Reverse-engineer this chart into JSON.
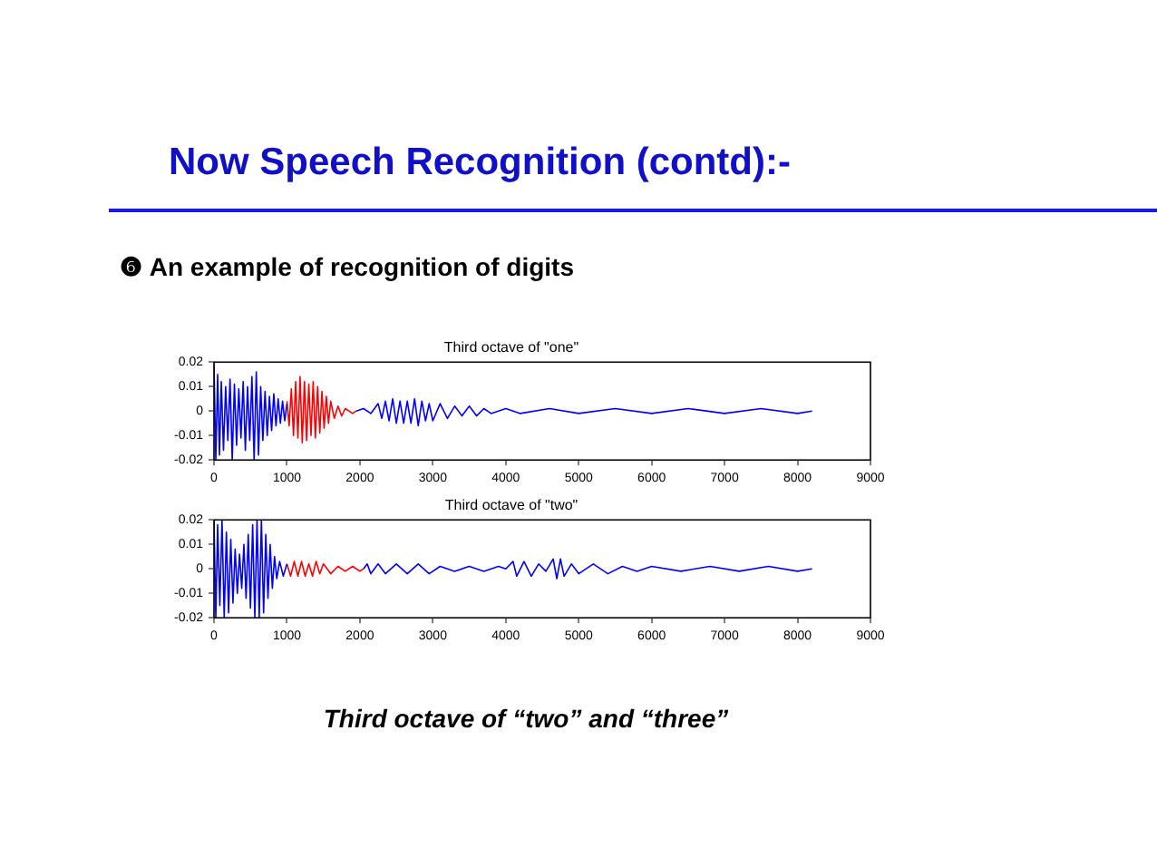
{
  "chart_data": [
    {
      "type": "line",
      "title": "Third octave of \"one\"",
      "annotations": [
        "Now Speech Recognition (contd):-",
        "❻ An example of recognition of digits"
      ],
      "xlim": [
        0,
        9000
      ],
      "xticks": [
        0,
        1000,
        2000,
        3000,
        4000,
        5000,
        6000,
        7000,
        8000,
        9000
      ],
      "ylim": [
        -0.02,
        0.02
      ],
      "yticks": [
        -0.02,
        -0.01,
        0,
        0.01,
        0.02
      ],
      "grid": false,
      "legend": false,
      "marker": "none",
      "line_style": "solid",
      "series": [
        {
          "color": "#0000ff",
          "x": [
            0,
            25,
            50,
            75,
            100,
            130,
            160,
            190,
            220,
            250,
            280,
            310,
            340,
            370,
            400,
            430,
            460,
            490,
            520,
            550,
            580,
            610,
            640,
            670,
            700,
            730,
            760,
            790,
            820,
            850,
            880,
            910,
            940,
            970,
            1000
          ],
          "values": [
            0.019,
            -0.02,
            0.015,
            -0.018,
            0.012,
            -0.016,
            0.01,
            -0.012,
            0.013,
            -0.02,
            0.011,
            -0.014,
            0.009,
            -0.011,
            0.012,
            -0.016,
            0.01,
            -0.012,
            0.014,
            -0.02,
            0.016,
            -0.018,
            0.01,
            -0.012,
            0.008,
            -0.01,
            0.006,
            -0.008,
            0.007,
            -0.006,
            0.005,
            -0.005,
            0.004,
            -0.004,
            0.003
          ]
        },
        {
          "color": "#ff0000",
          "x": [
            1000,
            1030,
            1060,
            1090,
            1120,
            1150,
            1180,
            1210,
            1240,
            1270,
            1300,
            1330,
            1360,
            1390,
            1420,
            1450,
            1480,
            1510,
            1540,
            1570,
            1600,
            1650,
            1700,
            1750,
            1800,
            1900,
            1950
          ],
          "values": [
            0.004,
            -0.006,
            0.009,
            -0.01,
            0.012,
            -0.011,
            0.014,
            -0.013,
            0.012,
            -0.012,
            0.011,
            -0.01,
            0.012,
            -0.011,
            0.01,
            -0.009,
            0.008,
            -0.007,
            0.006,
            -0.005,
            0.004,
            -0.003,
            0.002,
            -0.002,
            0.001,
            -0.001,
            0
          ]
        },
        {
          "color": "#0000ff",
          "x": [
            1950,
            2050,
            2150,
            2250,
            2300,
            2350,
            2400,
            2450,
            2500,
            2550,
            2600,
            2650,
            2700,
            2750,
            2800,
            2850,
            2900,
            2950,
            3000,
            3100,
            3200,
            3300,
            3400,
            3500,
            3600,
            3700,
            3800,
            4000,
            4200,
            4600,
            5000,
            5500,
            6000,
            6500,
            7000,
            7500,
            8000,
            8200
          ],
          "values": [
            0,
            0.001,
            -0.001,
            0.003,
            -0.003,
            0.004,
            -0.004,
            0.005,
            -0.005,
            0.004,
            -0.005,
            0.004,
            -0.005,
            0.005,
            -0.006,
            0.004,
            -0.004,
            0.003,
            -0.004,
            0.003,
            -0.003,
            0.002,
            -0.002,
            0.002,
            -0.002,
            0.001,
            -0.001,
            0.001,
            -0.001,
            0.001,
            -0.001,
            0.001,
            -0.001,
            0.001,
            -0.001,
            0.001,
            -0.001,
            0
          ]
        }
      ]
    },
    {
      "type": "line",
      "title": "Third octave of \"two\"",
      "annotations": [
        "Third octave of “two” and “three”"
      ],
      "xlim": [
        0,
        9000
      ],
      "xticks": [
        0,
        1000,
        2000,
        3000,
        4000,
        5000,
        6000,
        7000,
        8000,
        9000
      ],
      "ylim": [
        -0.02,
        0.02
      ],
      "yticks": [
        -0.02,
        -0.01,
        0,
        0.01,
        0.02
      ],
      "grid": false,
      "legend": false,
      "marker": "none",
      "line_style": "solid",
      "series": [
        {
          "color": "#0000ff",
          "x": [
            0,
            25,
            50,
            80,
            110,
            140,
            170,
            200,
            230,
            260,
            290,
            320,
            350,
            380,
            410,
            440,
            470,
            500,
            530,
            560,
            590,
            620,
            650,
            680,
            710,
            740,
            770,
            800,
            830,
            860,
            900,
            950,
            1000
          ],
          "values": [
            0.02,
            -0.02,
            0.018,
            -0.015,
            0.02,
            -0.02,
            0.015,
            -0.018,
            0.012,
            -0.014,
            0.008,
            -0.01,
            0.006,
            -0.008,
            0.01,
            -0.012,
            0.014,
            -0.016,
            0.018,
            -0.02,
            0.02,
            -0.02,
            0.02,
            -0.018,
            0.014,
            -0.012,
            0.01,
            -0.008,
            0.005,
            -0.004,
            0.003,
            -0.003,
            0.002
          ]
        },
        {
          "color": "#ff0000",
          "x": [
            1000,
            1050,
            1100,
            1150,
            1200,
            1250,
            1300,
            1350,
            1400,
            1450,
            1500,
            1600,
            1700,
            1800,
            1900,
            2000,
            2050
          ],
          "values": [
            0.002,
            -0.003,
            0.003,
            -0.003,
            0.003,
            -0.003,
            0.002,
            -0.003,
            0.003,
            -0.002,
            0.002,
            -0.002,
            0.001,
            -0.001,
            0.001,
            -0.001,
            0
          ]
        },
        {
          "color": "#0000ff",
          "x": [
            2050,
            2100,
            2150,
            2250,
            2350,
            2500,
            2650,
            2800,
            2950,
            3100,
            3300,
            3500,
            3700,
            3900,
            4000,
            4100,
            4150,
            4250,
            4350,
            4450,
            4550,
            4650,
            4700,
            4750,
            4800,
            4900,
            5000,
            5200,
            5400,
            5600,
            5800,
            6000,
            6400,
            6800,
            7200,
            7600,
            8000,
            8200
          ],
          "values": [
            0,
            0.002,
            -0.002,
            0.002,
            -0.002,
            0.002,
            -0.002,
            0.002,
            -0.002,
            0.001,
            -0.001,
            0.001,
            -0.001,
            0.001,
            0,
            0.003,
            -0.003,
            0.003,
            -0.003,
            0.002,
            -0.001,
            0.004,
            -0.004,
            0.004,
            -0.003,
            0.002,
            -0.002,
            0.002,
            -0.002,
            0.001,
            -0.001,
            0.001,
            -0.001,
            0.001,
            -0.001,
            0.001,
            -0.001,
            0
          ]
        }
      ]
    }
  ]
}
